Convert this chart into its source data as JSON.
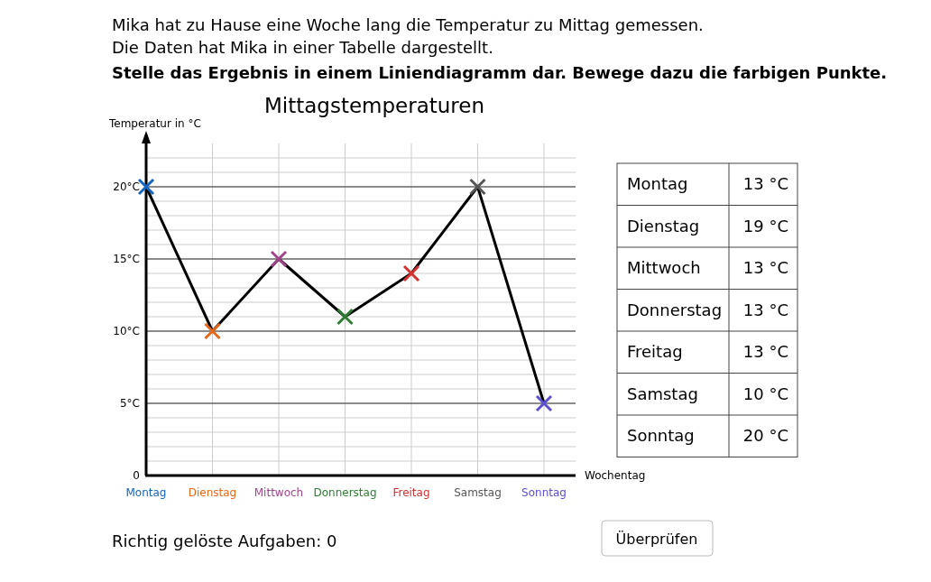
{
  "chart_data": [
    {
      "type": "line",
      "title": "Mittagstemperaturen",
      "ylabel": "Temperatur in °C",
      "xlabel": "Wochentag",
      "annotations": [
        "Mika hat zu Hause eine Woche lang die Temperatur zu Mittag gemessen.",
        "Die Daten hat Mika in einer Tabelle dargestellt.",
        "Stelle das Ergebnis in einem Liniendiagramm dar. Bewege dazu die farbigen Punkte.",
        "Richtig gelöste Aufgaben: 0",
        "Überprüfen"
      ],
      "categories": [
        "Montag",
        "Dienstag",
        "Mittwoch",
        "Donnerstag",
        "Freitag",
        "Samstag",
        "Sonntag"
      ],
      "series": [
        {
          "color": "#000000",
          "values": [
            20,
            10,
            15,
            11,
            14,
            20,
            5
          ],
          "colors": [
            "#1565c0",
            "#e8681a",
            "#a0458a",
            "#2e7d32",
            "#d32f2f",
            "#555555",
            "#5b4fcf"
          ]
        }
      ],
      "ylim": [
        0,
        23
      ],
      "yticks": [
        {
          "value": 0,
          "label": "0"
        },
        {
          "value": 5,
          "label": "5°C"
        },
        {
          "value": 10,
          "label": "10°C"
        },
        {
          "value": 15,
          "label": "15°C"
        },
        {
          "value": 20,
          "label": "20°C"
        }
      ],
      "grid": true,
      "marker": "cross",
      "line_style": "solid"
    },
    {
      "type": "other",
      "annotations": [
        "Montag",
        "13 °C",
        "Dienstag",
        "19 °C",
        "Mittwoch",
        "13 °C",
        "Donnerstag",
        "13 °C",
        "Freitag",
        "13 °C",
        "Samstag",
        "10 °C",
        "Sonntag",
        "20 °C"
      ]
    }
  ]
}
